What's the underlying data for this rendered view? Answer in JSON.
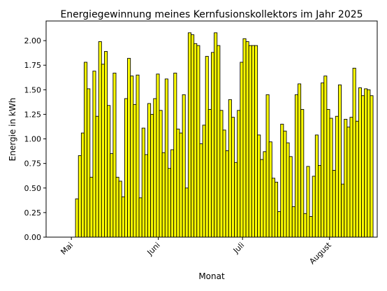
{
  "chart_data": {
    "type": "bar",
    "title": "Energiegewinnung meines Kernfusionskollektors im Jahr 2025",
    "xlabel": "Monat",
    "ylabel": "Energie in kWh",
    "ylim": [
      0,
      2.2
    ],
    "yticks": [
      "0.00",
      "0.25",
      "0.50",
      "0.75",
      "1.00",
      "1.25",
      "1.50",
      "1.75",
      "2.00"
    ],
    "xticks": [
      {
        "label": "Mai",
        "date": "2025-05-01"
      },
      {
        "label": "Juni",
        "date": "2025-06-01"
      },
      {
        "label": "Juli",
        "date": "2025-07-01"
      },
      {
        "label": "August",
        "date": "2025-08-01"
      }
    ],
    "x_start": "2025-05-03",
    "x_end": "2025-08-16",
    "bar_color": "#ffff00",
    "edge_color": "#000000",
    "grid": false,
    "values": [
      0.39,
      0.83,
      1.06,
      1.78,
      1.51,
      0.61,
      1.69,
      1.23,
      1.99,
      1.76,
      1.89,
      1.34,
      0.85,
      1.67,
      0.61,
      0.57,
      0.41,
      1.41,
      1.82,
      1.64,
      1.35,
      1.65,
      0.4,
      1.11,
      0.84,
      1.36,
      1.25,
      1.41,
      1.66,
      1.29,
      0.86,
      1.61,
      0.7,
      0.89,
      1.67,
      1.1,
      1.06,
      1.45,
      0.5,
      2.08,
      2.06,
      1.97,
      1.95,
      0.95,
      1.14,
      1.84,
      1.3,
      1.88,
      2.08,
      1.95,
      1.29,
      1.09,
      0.88,
      1.4,
      1.22,
      0.76,
      1.29,
      1.78,
      2.02,
      1.99,
      1.95,
      1.95,
      1.95,
      1.04,
      0.79,
      0.87,
      1.45,
      0.97,
      0.6,
      0.56,
      0.26,
      1.15,
      1.08,
      0.96,
      0.82,
      0.31,
      1.45,
      1.56,
      1.3,
      0.24,
      0.72,
      0.21,
      0.62,
      1.04,
      0.73,
      1.57,
      1.64,
      1.3,
      1.21,
      0.68,
      1.23,
      1.55,
      0.54,
      1.2,
      1.12,
      1.22,
      1.72,
      1.18,
      1.52,
      1.44,
      1.51,
      1.5,
      1.44
    ]
  }
}
